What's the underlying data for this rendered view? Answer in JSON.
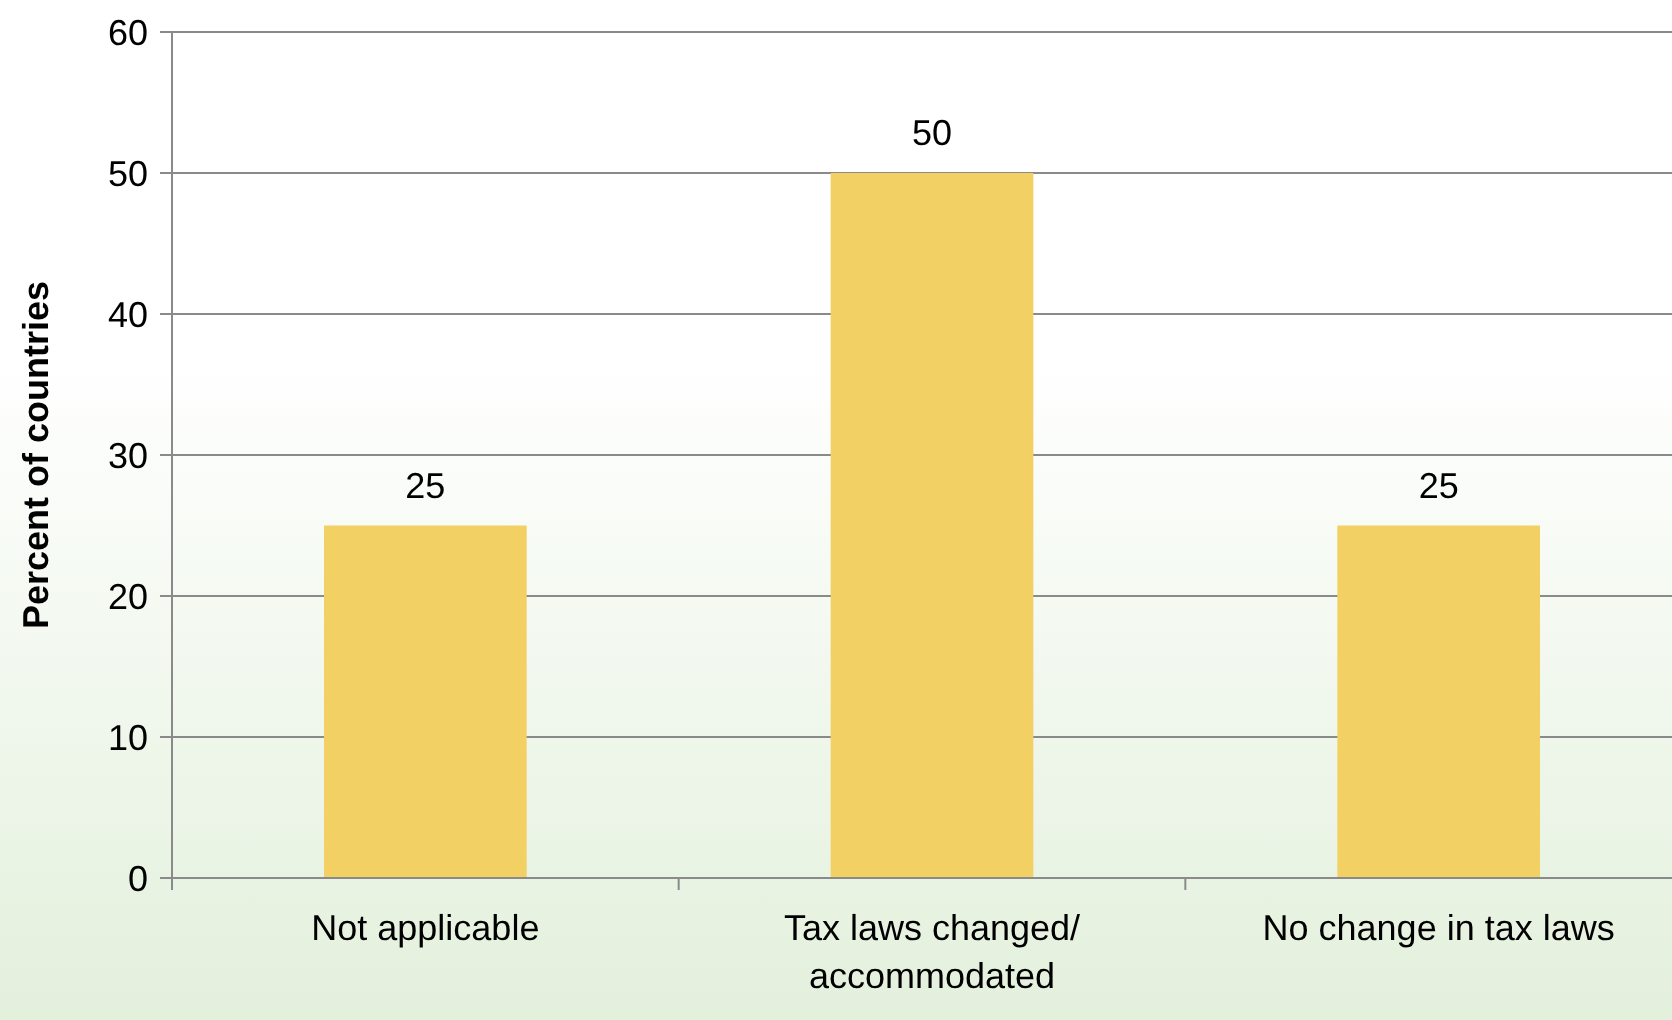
{
  "chart_data": {
    "type": "bar",
    "ylabel": "Percent of countries",
    "categories": [
      "Not applicable",
      "Tax laws changed/ accommodated",
      "No change in tax laws"
    ],
    "values": [
      25,
      50,
      25
    ],
    "color": "#f3d063",
    "ylim": [
      0,
      60
    ],
    "yticks": [
      0,
      10,
      20,
      30,
      40,
      50,
      60
    ],
    "grid": "y",
    "data_labels": true
  }
}
